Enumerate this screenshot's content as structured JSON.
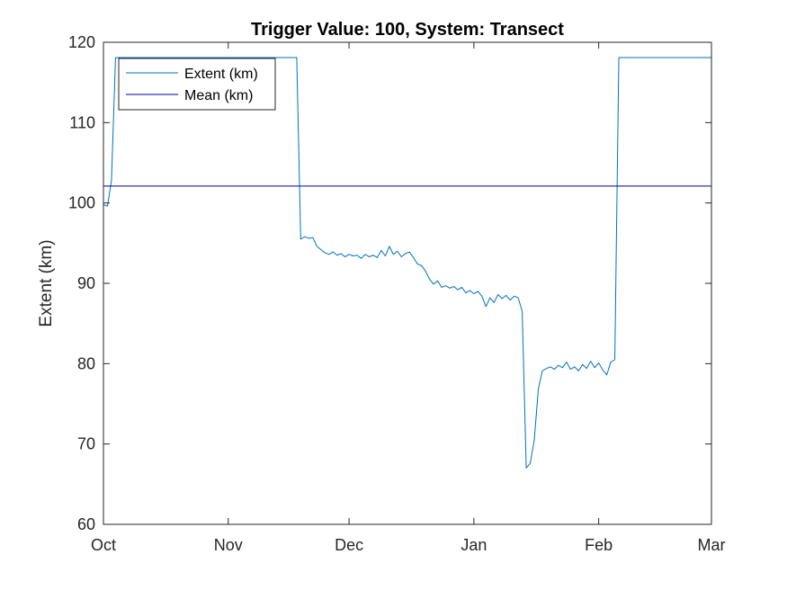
{
  "chart_data": {
    "type": "line",
    "title": "Trigger Value: 100, System: Transect",
    "xlabel": "",
    "ylabel": "Extent (km)",
    "xlim": [
      "2000-10-01",
      "2001-03-01"
    ],
    "ylim": [
      60,
      120
    ],
    "x_ticks": [
      {
        "date": "2000-10-01",
        "label": "Oct"
      },
      {
        "date": "2000-11-01",
        "label": "Nov"
      },
      {
        "date": "2000-12-01",
        "label": "Dec"
      },
      {
        "date": "2001-01-01",
        "label": "Jan"
      },
      {
        "date": "2001-02-01",
        "label": "Feb"
      },
      {
        "date": "2001-03-01",
        "label": "Mar"
      }
    ],
    "y_ticks": [
      60,
      70,
      80,
      90,
      100,
      110,
      120
    ],
    "grid": false,
    "legend_position": "top-left",
    "series": [
      {
        "name": "Extent (km)",
        "color": "#0072BD",
        "points": [
          [
            "2000-10-01",
            99.8
          ],
          [
            "2000-10-02",
            99.6
          ],
          [
            "2000-10-03",
            102.8
          ],
          [
            "2000-10-04",
            118.1
          ],
          [
            "2000-10-15",
            118.1
          ],
          [
            "2000-11-01",
            118.1
          ],
          [
            "2000-11-10",
            118.1
          ],
          [
            "2000-11-18",
            118.1
          ],
          [
            "2000-11-19",
            95.5
          ],
          [
            "2000-11-20",
            95.8
          ],
          [
            "2000-11-21",
            95.6
          ],
          [
            "2000-11-22",
            95.7
          ],
          [
            "2000-11-23",
            94.6
          ],
          [
            "2000-11-24",
            94.2
          ],
          [
            "2000-11-25",
            93.8
          ],
          [
            "2000-11-26",
            93.6
          ],
          [
            "2000-11-27",
            93.9
          ],
          [
            "2000-11-28",
            93.5
          ],
          [
            "2000-11-29",
            93.7
          ],
          [
            "2000-11-30",
            93.3
          ],
          [
            "2000-12-01",
            93.6
          ],
          [
            "2000-12-02",
            93.4
          ],
          [
            "2000-12-03",
            93.5
          ],
          [
            "2000-12-04",
            93.1
          ],
          [
            "2000-12-05",
            93.6
          ],
          [
            "2000-12-06",
            93.3
          ],
          [
            "2000-12-07",
            93.5
          ],
          [
            "2000-12-08",
            93.2
          ],
          [
            "2000-12-09",
            94.1
          ],
          [
            "2000-12-10",
            93.4
          ],
          [
            "2000-12-11",
            94.6
          ],
          [
            "2000-12-12",
            93.6
          ],
          [
            "2000-12-13",
            94.0
          ],
          [
            "2000-12-14",
            93.3
          ],
          [
            "2000-12-15",
            93.7
          ],
          [
            "2000-12-16",
            93.9
          ],
          [
            "2000-12-17",
            93.2
          ],
          [
            "2000-12-18",
            92.4
          ],
          [
            "2000-12-19",
            92.2
          ],
          [
            "2000-12-20",
            91.5
          ],
          [
            "2000-12-21",
            90.5
          ],
          [
            "2000-12-22",
            89.9
          ],
          [
            "2000-12-23",
            90.3
          ],
          [
            "2000-12-24",
            89.5
          ],
          [
            "2000-12-25",
            89.7
          ],
          [
            "2000-12-26",
            89.4
          ],
          [
            "2000-12-27",
            89.6
          ],
          [
            "2000-12-28",
            89.2
          ],
          [
            "2000-12-29",
            89.5
          ],
          [
            "2000-12-30",
            88.8
          ],
          [
            "2000-12-31",
            89.1
          ],
          [
            "2001-01-01",
            88.7
          ],
          [
            "2001-01-02",
            89.0
          ],
          [
            "2001-01-03",
            88.4
          ],
          [
            "2001-01-04",
            87.1
          ],
          [
            "2001-01-05",
            88.2
          ],
          [
            "2001-01-06",
            87.6
          ],
          [
            "2001-01-07",
            88.6
          ],
          [
            "2001-01-08",
            88.1
          ],
          [
            "2001-01-09",
            88.5
          ],
          [
            "2001-01-10",
            87.9
          ],
          [
            "2001-01-11",
            88.4
          ],
          [
            "2001-01-12",
            88.2
          ],
          [
            "2001-01-13",
            86.5
          ],
          [
            "2001-01-14",
            67.0
          ],
          [
            "2001-01-15",
            67.6
          ],
          [
            "2001-01-16",
            70.5
          ],
          [
            "2001-01-17",
            76.8
          ],
          [
            "2001-01-18",
            79.1
          ],
          [
            "2001-01-19",
            79.4
          ],
          [
            "2001-01-20",
            79.6
          ],
          [
            "2001-01-21",
            79.3
          ],
          [
            "2001-01-22",
            79.8
          ],
          [
            "2001-01-23",
            79.5
          ],
          [
            "2001-01-24",
            80.2
          ],
          [
            "2001-01-25",
            79.3
          ],
          [
            "2001-01-26",
            79.6
          ],
          [
            "2001-01-27",
            79.1
          ],
          [
            "2001-01-28",
            79.9
          ],
          [
            "2001-01-29",
            79.4
          ],
          [
            "2001-01-30",
            80.3
          ],
          [
            "2001-01-31",
            79.5
          ],
          [
            "2001-02-01",
            80.1
          ],
          [
            "2001-02-02",
            79.2
          ],
          [
            "2001-02-03",
            78.6
          ],
          [
            "2001-02-04",
            80.2
          ],
          [
            "2001-02-05",
            80.5
          ],
          [
            "2001-02-06",
            118.1
          ],
          [
            "2001-02-15",
            118.1
          ],
          [
            "2001-03-01",
            118.1
          ]
        ]
      },
      {
        "name": "Mean (km)",
        "color": "#0000A0",
        "points": [
          [
            "2000-10-01",
            102.1
          ],
          [
            "2001-03-01",
            102.1
          ]
        ]
      }
    ]
  }
}
